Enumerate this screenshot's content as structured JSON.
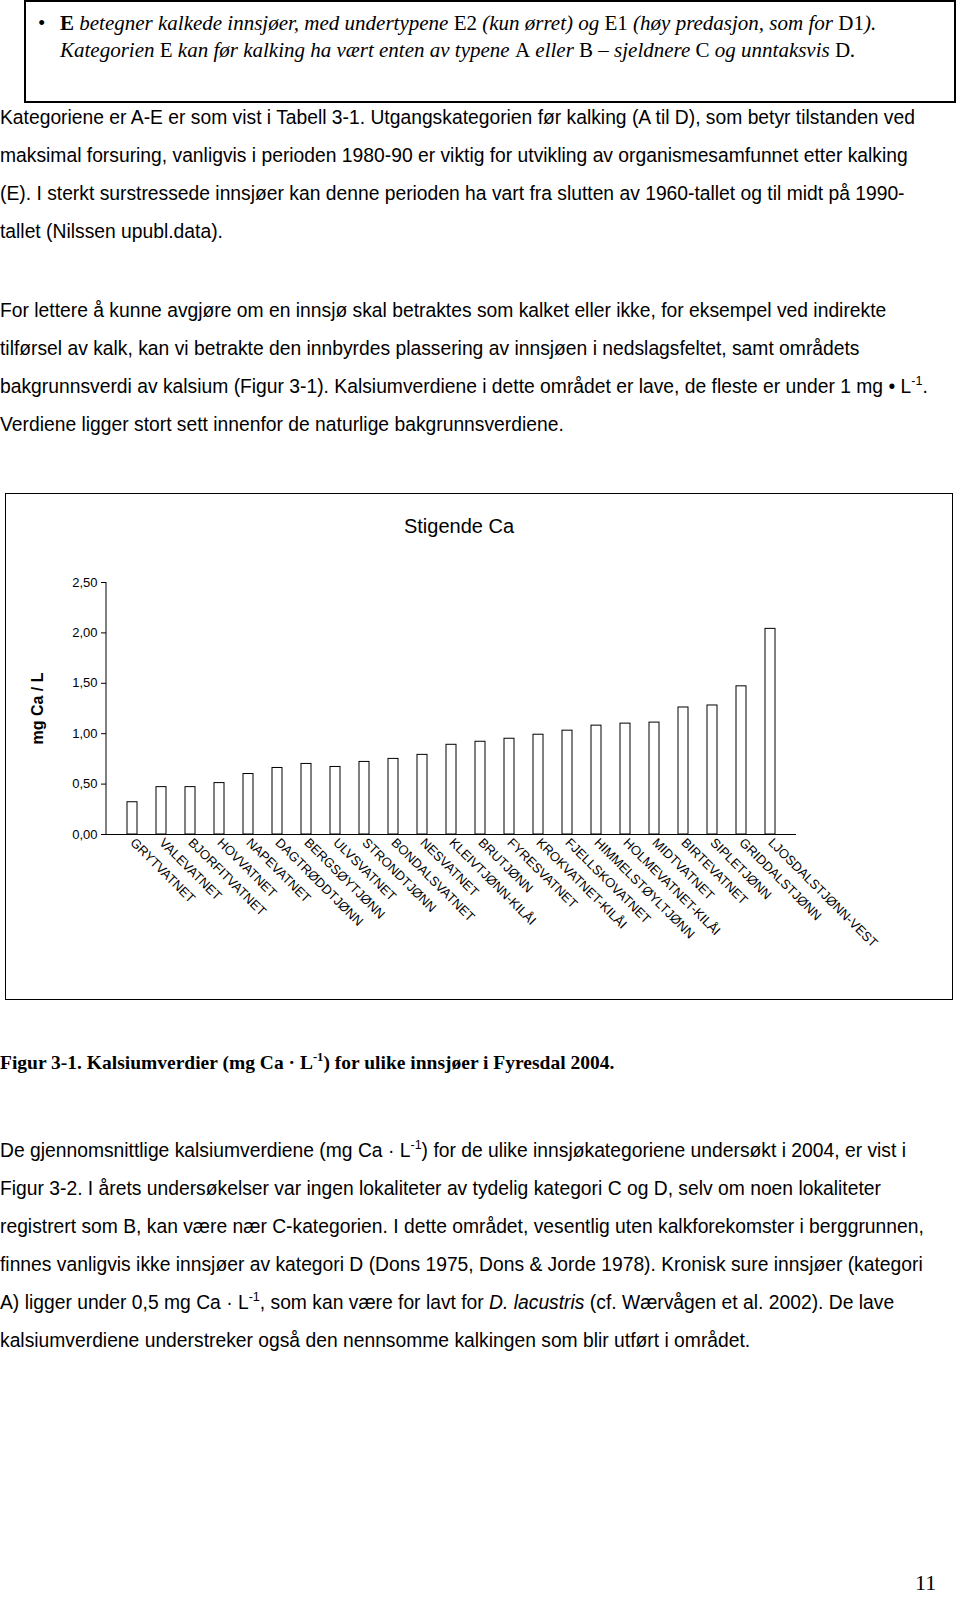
{
  "box": {
    "bullet": "•",
    "text": [
      {
        "b": "E"
      },
      " betegner kalkede innsjøer, med undertypene ",
      {
        "r": "E2"
      },
      " (kun ørret) og ",
      {
        "r": "E1"
      },
      " (høy predasjon, som for ",
      {
        "r": "D1"
      },
      "). Kategorien ",
      {
        "r": "E"
      },
      " kan før kalking ha vært enten av typene ",
      {
        "r": "A"
      },
      " eller ",
      {
        "r": "B"
      },
      " – sjeldnere ",
      {
        "r": "C"
      },
      " og unntaksvis ",
      {
        "r": "D"
      },
      "."
    ]
  },
  "paragraphs_before": [
    [
      "Kategoriene er A-E er som vist i Tabell 3-1. Utgangskategorien før kalking (A til D), som betyr tilstanden ved maksimal forsuring, vanligvis i perioden 1980-90 er viktig for utvikling av organismesamfunnet etter kalking (E). I sterkt surstressede innsjøer kan denne perioden ha vart fra slutten av 1960-tallet og til midt på 1990-tallet (Nilssen upubl.data)."
    ],
    [
      "For lettere å kunne avgjøre om en innsjø skal betraktes som kalket eller ikke, for eksempel ved indirekte tilførsel av kalk, kan vi betrakte den innbyrdes plassering av innsjøen i nedslagsfeltet, samt områdets bakgrunnsverdi av kalsium (Figur 3-1). Kalsiumverdiene i dette området er lave, de fleste er under 1 mg • L",
      {
        "sup": "-1"
      },
      ". Verdiene ligger stort sett innenfor de naturlige bakgrunnsverdiene."
    ]
  ],
  "chart_data": {
    "type": "bar",
    "title": "Stigende Ca",
    "y_label": "mg Ca / L",
    "categories": [
      "GRYTVATNET",
      "VALEVATNET",
      "BJORFITVATNET",
      "HOVVATNET",
      "NAPEVATNET",
      "DAGTRØDDTJØNN",
      "BERGSØYTJØNN",
      "ULVSVATNET",
      "STRONDTJØNN",
      "BONDALSVATNET",
      "NESVATNET",
      "KLEIVTJØNN-KILÅI",
      "BRUTJØNN",
      "FYRESVATNET",
      "KROKVATNET-KILÅI",
      "FJELLSKOVATNET",
      "HIMMELSTØYLTJØNN",
      "HOLMEVATNET-KILÅI",
      "MIDTVATNET",
      "BIRTEVATNET",
      "SIPLETJØNN",
      "GRIDDALSTJØNN",
      "LJOSDALSTJØNN-VEST"
    ],
    "values": [
      0.32,
      0.47,
      0.47,
      0.51,
      0.6,
      0.66,
      0.7,
      0.67,
      0.72,
      0.75,
      0.79,
      0.89,
      0.92,
      0.95,
      0.99,
      1.03,
      1.08,
      1.1,
      1.11,
      1.26,
      1.28,
      1.47,
      2.04
    ],
    "color": "#ffffff",
    "ylim": [
      0,
      2.5
    ],
    "yticks": [
      {
        "value": 0,
        "label": "0,00"
      },
      {
        "value": 0.5,
        "label": "0,50"
      },
      {
        "value": 1,
        "label": "1,00"
      },
      {
        "value": 1.5,
        "label": "1,50"
      },
      {
        "value": 2,
        "label": "2,00"
      },
      {
        "value": 2.5,
        "label": "2,50"
      }
    ],
    "grid": false
  },
  "caption": [
    "Figur 3-1. Kalsiumverdier (mg Ca · L",
    {
      "sup": "-1"
    },
    ") for ulike innsjøer i Fyresdal 2004."
  ],
  "paragraphs_after": [
    [
      "De gjennomsnittlige kalsiumverdiene (mg Ca · L",
      {
        "sup": "-1"
      },
      ") for de ulike innsjøkategoriene undersøkt i 2004, er vist i Figur 3-2. I årets undersøkelser var ingen lokaliteter av tydelig kategori C og D, selv om noen lokaliteter registrert som B, kan være nær C-kategorien. I dette området, vesentlig uten kalkforekomster i berggrunnen, finnes vanligvis ikke innsjøer av kategori D (Dons 1975, Dons & Jorde 1978). Kronisk sure innsjøer (kategori A) ligger under 0,5 mg Ca · L",
      {
        "sup": "-1"
      },
      ", som kan være for lavt for ",
      {
        "i": "D. lacustris"
      },
      " (cf. Wærvågen et al. 2002). De lave kalsiumverdiene understreker også den nennsomme kalkingen som blir utført i området."
    ]
  ],
  "page_number": "11"
}
